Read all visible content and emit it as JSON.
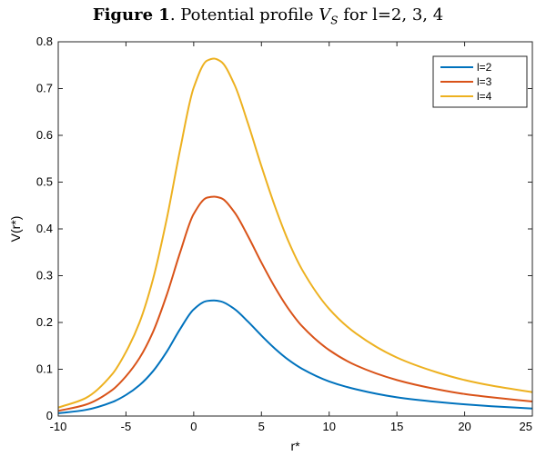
{
  "caption": {
    "prefix": "Figure 1",
    "text": ". Potential profile ",
    "symbol": "V",
    "subscript": "S",
    "suffix": " for l=2, 3, 4"
  },
  "chart_data": {
    "type": "line",
    "title": "Figure 1. Potential profile V_S for l=2, 3, 4",
    "xlabel": "r*",
    "ylabel": "V(r*)",
    "xlim": [
      -10,
      25
    ],
    "ylim": [
      0,
      0.8
    ],
    "xticks": [
      -10,
      -5,
      0,
      5,
      10,
      15,
      20,
      25
    ],
    "yticks": [
      0,
      0.1,
      0.2,
      0.3,
      0.4,
      0.5,
      0.6,
      0.7,
      0.8
    ],
    "grid": false,
    "legend_position": "top-right",
    "x": [
      -10,
      -8,
      -6,
      -5,
      -4,
      -3,
      -2,
      -1,
      0,
      1,
      1.5,
      2,
      3,
      4,
      5,
      6,
      7,
      8,
      10,
      12,
      15,
      18,
      20,
      22,
      25
    ],
    "series": [
      {
        "name": "l=2",
        "color": "#0072BD",
        "values": [
          0.006,
          0.013,
          0.03,
          0.045,
          0.066,
          0.096,
          0.137,
          0.186,
          0.228,
          0.246,
          0.247,
          0.245,
          0.229,
          0.202,
          0.172,
          0.144,
          0.12,
          0.101,
          0.074,
          0.057,
          0.04,
          0.03,
          0.025,
          0.021,
          0.016
        ]
      },
      {
        "name": "l=3",
        "color": "#D95319",
        "values": [
          0.011,
          0.024,
          0.056,
          0.085,
          0.124,
          0.18,
          0.258,
          0.35,
          0.432,
          0.467,
          0.469,
          0.466,
          0.436,
          0.385,
          0.328,
          0.275,
          0.229,
          0.192,
          0.141,
          0.108,
          0.077,
          0.057,
          0.047,
          0.04,
          0.031
        ]
      },
      {
        "name": "l=4",
        "color": "#EDB120",
        "values": [
          0.018,
          0.038,
          0.09,
          0.137,
          0.2,
          0.293,
          0.42,
          0.57,
          0.702,
          0.76,
          0.764,
          0.758,
          0.709,
          0.626,
          0.534,
          0.448,
          0.373,
          0.313,
          0.229,
          0.176,
          0.125,
          0.093,
          0.077,
          0.065,
          0.051
        ]
      }
    ]
  }
}
